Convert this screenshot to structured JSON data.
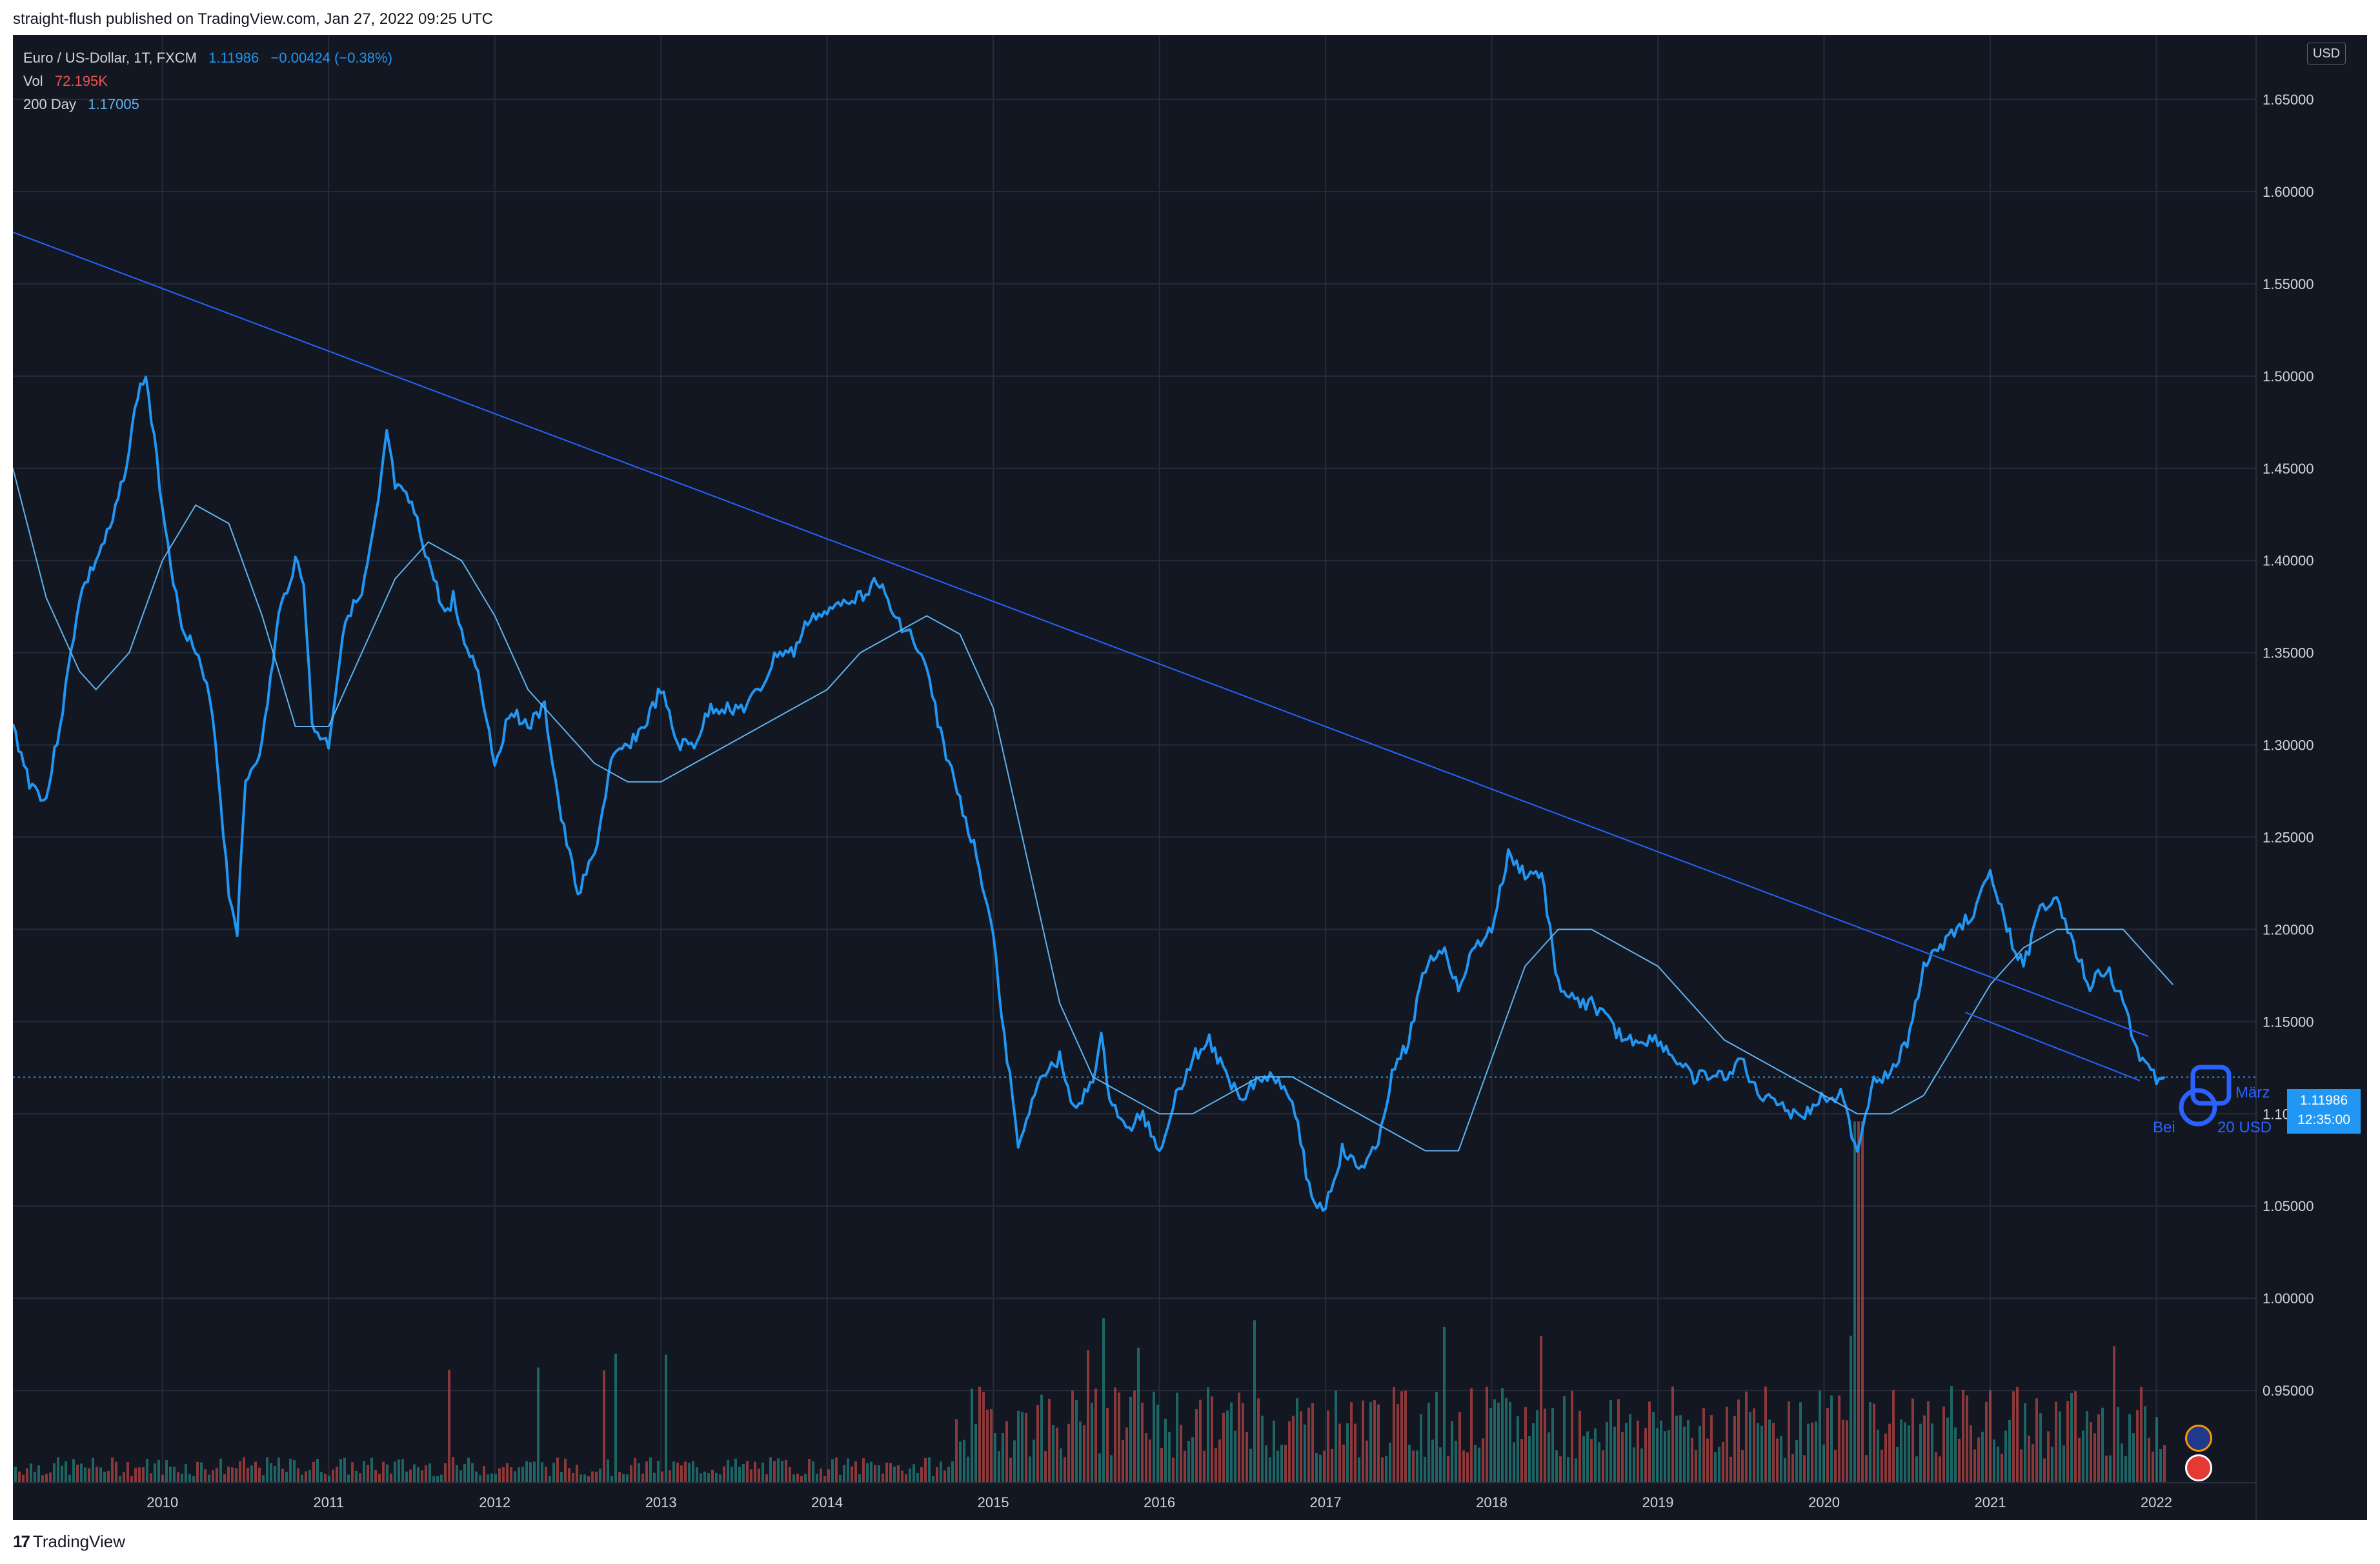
{
  "header": {
    "published": "straight-flush published on TradingView.com, Jan 27, 2022 09:25 UTC"
  },
  "legend": {
    "symbol": "Euro / US-Dollar, 1T, FXCM",
    "last": "1.11986",
    "change": "−0.00424 (−0.38%)",
    "vol_label": "Vol",
    "vol_value": "72.195K",
    "ma_label": "200 Day",
    "ma_value": "1.17005"
  },
  "axis": {
    "currency": "USD"
  },
  "price_tag": {
    "price": "1.11986",
    "countdown": "12:35:00"
  },
  "annotations": {
    "date_label": "März",
    "price_label_left": "Bei",
    "price_label_right": "20 USD"
  },
  "brand": {
    "logo": "17",
    "name": "TradingView"
  },
  "colors": {
    "background": "#131722",
    "price": "#2196f3",
    "ma": "#5fb3f0",
    "trendline": "#2962ff",
    "vol_up": "#26a69a",
    "vol_down": "#ef5350",
    "grid": "#262b3a"
  },
  "chart_data": {
    "type": "line",
    "x_unit": "year",
    "xlim": [
      2009.1,
      2022.6
    ],
    "ylim": [
      0.9,
      1.685
    ],
    "x_ticks": [
      "2010",
      "2011",
      "2012",
      "2013",
      "2014",
      "2015",
      "2016",
      "2017",
      "2018",
      "2019",
      "2020",
      "2021",
      "2022"
    ],
    "y_ticks": [
      "1.65000",
      "1.60000",
      "1.55000",
      "1.50000",
      "1.45000",
      "1.40000",
      "1.35000",
      "1.30000",
      "1.25000",
      "1.20000",
      "1.15000",
      "1.10000",
      "1.05000",
      "1.00000",
      "0.95000"
    ],
    "last_price": 1.11986,
    "series": [
      {
        "kind": "price",
        "x": [
          2009.1,
          2009.2,
          2009.3,
          2009.4,
          2009.5,
          2009.6,
          2009.7,
          2009.8,
          2009.85,
          2009.9,
          2010.0,
          2010.1,
          2010.2,
          2010.3,
          2010.4,
          2010.45,
          2010.5,
          2010.6,
          2010.7,
          2010.8,
          2010.85,
          2010.9,
          2011.0,
          2011.1,
          2011.2,
          2011.3,
          2011.35,
          2011.4,
          2011.5,
          2011.6,
          2011.7,
          2011.75,
          2011.8,
          2011.9,
          2012.0,
          2012.1,
          2012.2,
          2012.3,
          2012.4,
          2012.5,
          2012.6,
          2012.7,
          2012.8,
          2012.9,
          2013.0,
          2013.1,
          2013.2,
          2013.3,
          2013.4,
          2013.5,
          2013.6,
          2013.7,
          2013.8,
          2013.9,
          2014.0,
          2014.1,
          2014.2,
          2014.3,
          2014.4,
          2014.5,
          2014.6,
          2014.7,
          2014.8,
          2014.9,
          2015.0,
          2015.05,
          2015.1,
          2015.15,
          2015.2,
          2015.3,
          2015.4,
          2015.5,
          2015.6,
          2015.65,
          2015.7,
          2015.8,
          2015.9,
          2016.0,
          2016.1,
          2016.2,
          2016.3,
          2016.4,
          2016.5,
          2016.6,
          2016.7,
          2016.8,
          2016.9,
          2016.95,
          2017.0,
          2017.1,
          2017.2,
          2017.3,
          2017.4,
          2017.5,
          2017.6,
          2017.7,
          2017.8,
          2017.9,
          2018.0,
          2018.1,
          2018.2,
          2018.3,
          2018.4,
          2018.5,
          2018.6,
          2018.7,
          2018.8,
          2018.9,
          2019.0,
          2019.1,
          2019.2,
          2019.3,
          2019.4,
          2019.5,
          2019.6,
          2019.7,
          2019.8,
          2019.9,
          2020.0,
          2020.1,
          2020.2,
          2020.25,
          2020.3,
          2020.4,
          2020.5,
          2020.6,
          2020.7,
          2020.8,
          2020.9,
          2021.0,
          2021.1,
          2021.2,
          2021.3,
          2021.4,
          2021.5,
          2021.6,
          2021.7,
          2021.8,
          2021.9,
          2022.0,
          2022.05
        ],
        "y": [
          1.31,
          1.28,
          1.27,
          1.32,
          1.38,
          1.4,
          1.42,
          1.46,
          1.49,
          1.5,
          1.43,
          1.37,
          1.35,
          1.32,
          1.22,
          1.2,
          1.28,
          1.3,
          1.37,
          1.4,
          1.39,
          1.31,
          1.3,
          1.37,
          1.38,
          1.43,
          1.47,
          1.44,
          1.43,
          1.4,
          1.37,
          1.38,
          1.36,
          1.34,
          1.29,
          1.32,
          1.31,
          1.32,
          1.26,
          1.22,
          1.24,
          1.29,
          1.3,
          1.31,
          1.33,
          1.3,
          1.3,
          1.32,
          1.32,
          1.32,
          1.33,
          1.35,
          1.35,
          1.37,
          1.37,
          1.38,
          1.38,
          1.39,
          1.37,
          1.36,
          1.34,
          1.3,
          1.27,
          1.24,
          1.2,
          1.15,
          1.12,
          1.08,
          1.1,
          1.12,
          1.13,
          1.1,
          1.12,
          1.14,
          1.11,
          1.09,
          1.1,
          1.08,
          1.11,
          1.13,
          1.14,
          1.12,
          1.11,
          1.12,
          1.12,
          1.11,
          1.06,
          1.05,
          1.05,
          1.08,
          1.07,
          1.08,
          1.12,
          1.14,
          1.18,
          1.19,
          1.17,
          1.19,
          1.2,
          1.24,
          1.23,
          1.23,
          1.17,
          1.16,
          1.16,
          1.15,
          1.14,
          1.14,
          1.14,
          1.13,
          1.12,
          1.12,
          1.12,
          1.13,
          1.11,
          1.11,
          1.1,
          1.1,
          1.11,
          1.11,
          1.08,
          1.1,
          1.12,
          1.12,
          1.14,
          1.18,
          1.19,
          1.2,
          1.21,
          1.23,
          1.2,
          1.18,
          1.21,
          1.22,
          1.19,
          1.17,
          1.18,
          1.16,
          1.13,
          1.12,
          1.12
        ]
      },
      {
        "kind": "ma200",
        "x": [
          2009.1,
          2009.3,
          2009.5,
          2009.6,
          2009.8,
          2010.0,
          2010.2,
          2010.4,
          2010.6,
          2010.8,
          2011.0,
          2011.2,
          2011.4,
          2011.6,
          2011.8,
          2012.0,
          2012.2,
          2012.4,
          2012.6,
          2012.8,
          2013.0,
          2013.2,
          2013.4,
          2013.6,
          2013.8,
          2014.0,
          2014.2,
          2014.4,
          2014.6,
          2014.8,
          2015.0,
          2015.2,
          2015.4,
          2015.6,
          2015.8,
          2016.0,
          2016.2,
          2016.4,
          2016.6,
          2016.8,
          2017.0,
          2017.2,
          2017.4,
          2017.6,
          2017.8,
          2018.0,
          2018.2,
          2018.4,
          2018.6,
          2018.8,
          2019.0,
          2019.2,
          2019.4,
          2019.6,
          2019.8,
          2020.0,
          2020.2,
          2020.4,
          2020.6,
          2020.8,
          2021.0,
          2021.2,
          2021.4,
          2021.6,
          2021.8,
          2022.0,
          2022.1
        ],
        "y": [
          1.45,
          1.38,
          1.34,
          1.33,
          1.35,
          1.4,
          1.43,
          1.42,
          1.37,
          1.31,
          1.31,
          1.35,
          1.39,
          1.41,
          1.4,
          1.37,
          1.33,
          1.31,
          1.29,
          1.28,
          1.28,
          1.29,
          1.3,
          1.31,
          1.32,
          1.33,
          1.35,
          1.36,
          1.37,
          1.36,
          1.32,
          1.24,
          1.16,
          1.12,
          1.11,
          1.1,
          1.1,
          1.11,
          1.12,
          1.12,
          1.11,
          1.1,
          1.09,
          1.08,
          1.08,
          1.13,
          1.18,
          1.2,
          1.2,
          1.19,
          1.18,
          1.16,
          1.14,
          1.13,
          1.12,
          1.11,
          1.1,
          1.1,
          1.11,
          1.14,
          1.17,
          1.19,
          1.2,
          1.2,
          1.2,
          1.18,
          1.17
        ]
      },
      {
        "kind": "trendline",
        "x": [
          2009.1,
          2021.95
        ],
        "y": [
          1.578,
          1.142
        ]
      },
      {
        "kind": "trendline",
        "x": [
          2020.85,
          2021.9
        ],
        "y": [
          1.155,
          1.118
        ]
      }
    ],
    "volume_peak": {
      "x": 2020.2
    }
  }
}
